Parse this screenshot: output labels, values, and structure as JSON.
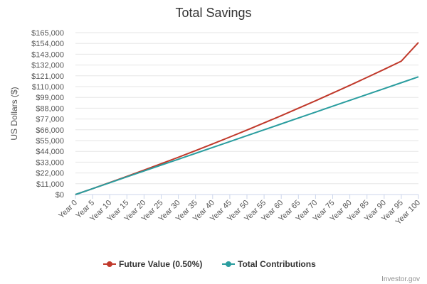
{
  "chart_data": {
    "type": "line",
    "title": "Total Savings",
    "ylabel": "US Dollars ($)",
    "xlabel": "",
    "ylim": [
      0,
      165000
    ],
    "y_ticks": [
      "$0",
      "$11,000",
      "$22,000",
      "$33,000",
      "$44,000",
      "$55,000",
      "$66,000",
      "$77,000",
      "$88,000",
      "$99,000",
      "$110,000",
      "$121,000",
      "$132,000",
      "$143,000",
      "$154,000",
      "$165,000"
    ],
    "y_tick_values": [
      0,
      11000,
      22000,
      33000,
      44000,
      55000,
      66000,
      77000,
      88000,
      99000,
      110000,
      121000,
      132000,
      143000,
      154000,
      165000
    ],
    "x": [
      0,
      5,
      10,
      15,
      20,
      25,
      30,
      35,
      40,
      45,
      50,
      55,
      60,
      65,
      70,
      75,
      80,
      85,
      90,
      95,
      100
    ],
    "x_tick_labels": [
      "Year 0",
      "Year 5",
      "Year 10",
      "Year 15",
      "Year 20",
      "Year 25",
      "Year 30",
      "Year 35",
      "Year 40",
      "Year 45",
      "Year 50",
      "Year 55",
      "Year 60",
      "Year 65",
      "Year 70",
      "Year 75",
      "Year 80",
      "Year 85",
      "Year 90",
      "Year 95",
      "Year 100"
    ],
    "grid": true,
    "legend_position": "bottom-center",
    "series": [
      {
        "name": "Future Value (0.50%)",
        "color": "#c0392b",
        "values": [
          0,
          6000,
          12200,
          18500,
          24900,
          31400,
          38000,
          44700,
          51600,
          58600,
          65700,
          73000,
          80400,
          88000,
          95600,
          103400,
          111300,
          119400,
          127600,
          136000,
          155000
        ]
      },
      {
        "name": "Total Contributions",
        "color": "#2a9d9f",
        "values": [
          0,
          6000,
          12000,
          18000,
          24000,
          30000,
          36000,
          42000,
          48000,
          54000,
          60000,
          66000,
          72000,
          78000,
          84000,
          90000,
          96000,
          102000,
          108000,
          114000,
          120000
        ]
      }
    ]
  },
  "credit": "Investor.gov"
}
